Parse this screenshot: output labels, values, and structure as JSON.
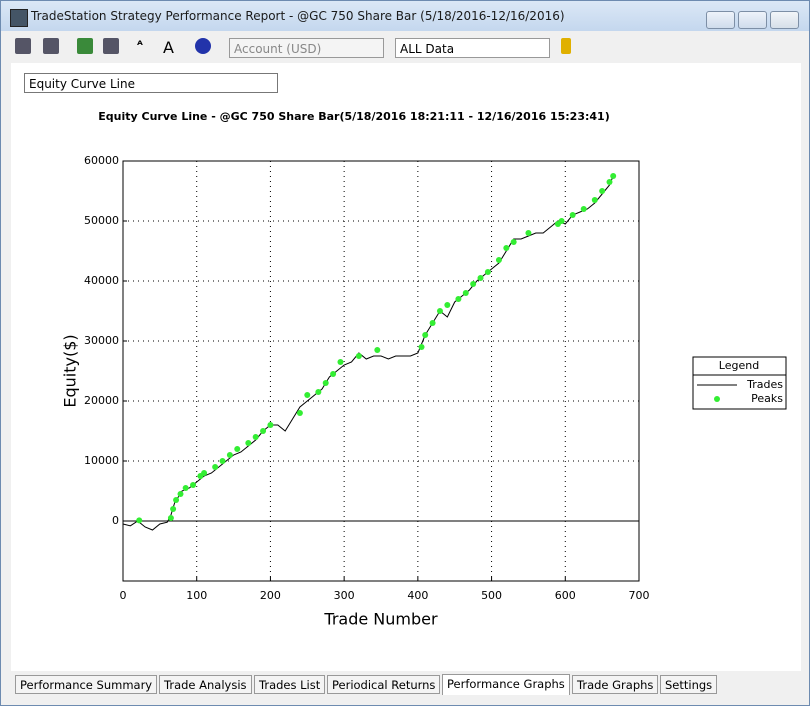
{
  "window": {
    "title": "TradeStation Strategy Performance Report - @GC 750 Share Bar (5/18/2016-12/16/2016)"
  },
  "toolbar": {
    "account_combo": "Account (USD)",
    "data_combo": "ALL Data"
  },
  "view_combo": "Equity Curve Line",
  "chart_data": {
    "type": "line",
    "title": "Equity Curve Line - @GC 750 Share Bar(5/18/2016 18:21:11 - 12/16/2016 15:23:41)",
    "x_label": "Trade Number",
    "y_label": "Equity($)",
    "legend_title": "Legend",
    "xlim": [
      0,
      700
    ],
    "xticks": [
      0,
      100,
      200,
      300,
      400,
      500,
      600,
      700
    ],
    "ylim": [
      -10000,
      60000
    ],
    "yticks": [
      0,
      10000,
      20000,
      30000,
      40000,
      50000,
      60000
    ],
    "grid": true,
    "series": [
      {
        "name": "Trades",
        "color": "#000000",
        "kind": "line",
        "x": [
          0,
          10,
          20,
          30,
          40,
          50,
          60,
          65,
          70,
          80,
          90,
          100,
          110,
          120,
          130,
          140,
          150,
          160,
          170,
          180,
          190,
          200,
          210,
          220,
          230,
          240,
          250,
          260,
          270,
          280,
          290,
          300,
          310,
          320,
          330,
          340,
          350,
          360,
          370,
          380,
          390,
          400,
          410,
          420,
          430,
          440,
          450,
          460,
          470,
          480,
          490,
          500,
          510,
          520,
          530,
          540,
          550,
          560,
          570,
          580,
          590,
          600,
          610,
          620,
          630,
          640,
          650,
          660,
          665
        ],
        "values": [
          -500,
          -800,
          0,
          -1000,
          -1500,
          -500,
          -200,
          1000,
          3000,
          5000,
          5500,
          6500,
          7500,
          8000,
          9000,
          10000,
          11000,
          11500,
          12500,
          13500,
          15000,
          16000,
          16000,
          15000,
          17000,
          19000,
          20000,
          21000,
          22000,
          24000,
          25000,
          26000,
          26500,
          28000,
          27000,
          27500,
          27500,
          27000,
          27500,
          27500,
          27500,
          28000,
          31000,
          33000,
          35000,
          34000,
          36500,
          37500,
          38500,
          40000,
          41000,
          42000,
          43000,
          45000,
          47000,
          47000,
          47500,
          48000,
          48000,
          49000,
          50000,
          49500,
          51000,
          51500,
          52000,
          53000,
          54500,
          56000,
          57500
        ]
      },
      {
        "name": "Peaks",
        "color": "#33ee33",
        "kind": "scatter",
        "x": [
          22,
          65,
          68,
          72,
          78,
          85,
          95,
          105,
          110,
          125,
          135,
          145,
          155,
          170,
          180,
          190,
          200,
          240,
          250,
          265,
          275,
          285,
          295,
          320,
          345,
          405,
          410,
          420,
          430,
          440,
          455,
          465,
          475,
          485,
          495,
          510,
          520,
          530,
          550,
          590,
          595,
          610,
          625,
          640,
          650,
          660,
          665
        ],
        "values": [
          100,
          500,
          2000,
          3500,
          4500,
          5500,
          6000,
          7500,
          8000,
          9000,
          10000,
          11000,
          12000,
          13000,
          14000,
          15000,
          16000,
          18000,
          21000,
          21500,
          23000,
          24500,
          26500,
          27500,
          28500,
          29000,
          31000,
          33000,
          35000,
          36000,
          37000,
          38000,
          39500,
          40500,
          41500,
          43500,
          45500,
          46500,
          48000,
          49500,
          50000,
          51000,
          52000,
          53500,
          55000,
          56500,
          57500
        ]
      }
    ]
  },
  "tabs": [
    "Performance Summary",
    "Trade Analysis",
    "Trades List",
    "Periodical Returns",
    "Performance Graphs",
    "Trade Graphs",
    "Settings"
  ],
  "active_tab": 4
}
